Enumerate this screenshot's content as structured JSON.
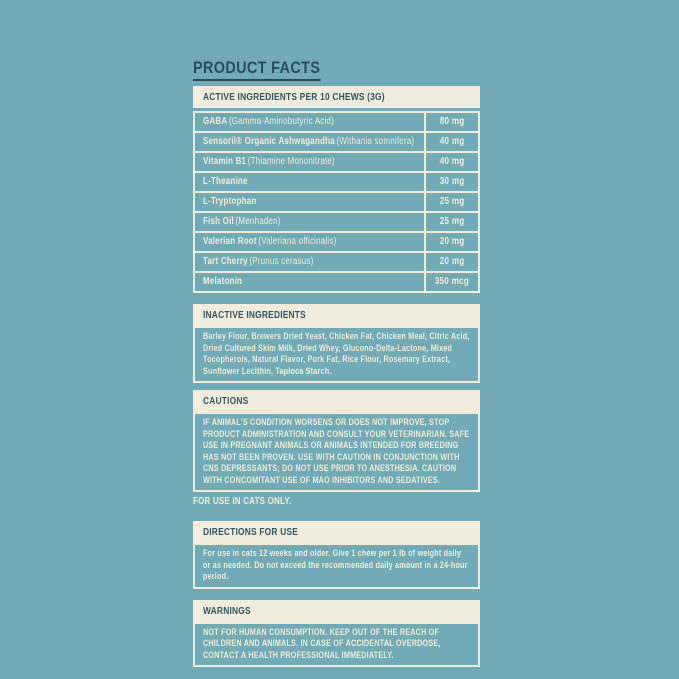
{
  "colors": {
    "background_teal": "#72ABB7",
    "cream": "#F1ECDB",
    "dark_navy": "#2C4B59"
  },
  "title": "PRODUCT FACTS",
  "active": {
    "header": "ACTIVE INGREDIENTS PER 10 CHEWS (3G)",
    "rows": [
      {
        "name": "GABA",
        "detail": "(Gamma-Aminobutyric Acid)",
        "amount": "80 mg"
      },
      {
        "name": "Sensoril® Organic Ashwagandha",
        "detail": "(Withania somnifera)",
        "amount": "40 mg"
      },
      {
        "name": "Vitamin B1",
        "detail": "(Thiamine Mononitrate)",
        "amount": "40 mg"
      },
      {
        "name": "L-Theanine",
        "detail": "",
        "amount": "30 mg"
      },
      {
        "name": "L-Tryptophan",
        "detail": "",
        "amount": "25 mg"
      },
      {
        "name": "Fish Oil",
        "detail": "(Menhaden)",
        "amount": "25 mg"
      },
      {
        "name": "Valerian Root",
        "detail": "(Valeriana officinalis)",
        "amount": "20 mg"
      },
      {
        "name": "Tart Cherry",
        "detail": "(Prunus cerasus)",
        "amount": "20 mg"
      },
      {
        "name": "Melatonin",
        "detail": "",
        "amount": "350 mcg"
      }
    ]
  },
  "inactive": {
    "header": "INACTIVE INGREDIENTS",
    "body": "Barley Flour, Brewers Dried Yeast, Chicken Fat, Chicken Meal, Citric Acid, Dried Cultured Skim Milk, Dried Whey, Glucono-Delta-Lactone, Mixed Tocopherols, Natural Flavor, Pork Fat, Rice Flour, Rosemary Extract, Sunflower Lecithin, Tapioca Starch."
  },
  "cautions": {
    "header": "CAUTIONS",
    "body": "IF ANIMAL'S CONDITION WORSENS OR DOES NOT IMPROVE, STOP PRODUCT ADMINISTRATION AND CONSULT YOUR VETERINARIAN. SAFE USE IN PREGNANT ANIMALS OR ANIMALS INTENDED FOR BREEDING HAS NOT BEEN PROVEN. USE WITH CAUTION IN CONJUNCTION WITH CNS DEPRESSANTS; DO NOT USE PRIOR TO ANESTHESIA. CAUTION WITH CONCOMITANT USE OF MAO INHIBITORS AND SEDATIVES.",
    "footnote": "FOR USE IN CATS ONLY."
  },
  "directions": {
    "header": "DIRECTIONS FOR USE",
    "body": "For use in cats 12 weeks and older. Give 1 chew per 1 lb of weight daily or as needed. Do not exceed the recommended daily amount in a 24-hour period."
  },
  "warnings": {
    "header": "WARNINGS",
    "body": "NOT FOR HUMAN CONSUMPTION. KEEP OUT OF THE REACH OF CHILDREN AND ANIMALS. IN CASE OF ACCIDENTAL OVERDOSE, CONTACT A HEALTH PROFESSIONAL IMMEDIATELY."
  }
}
